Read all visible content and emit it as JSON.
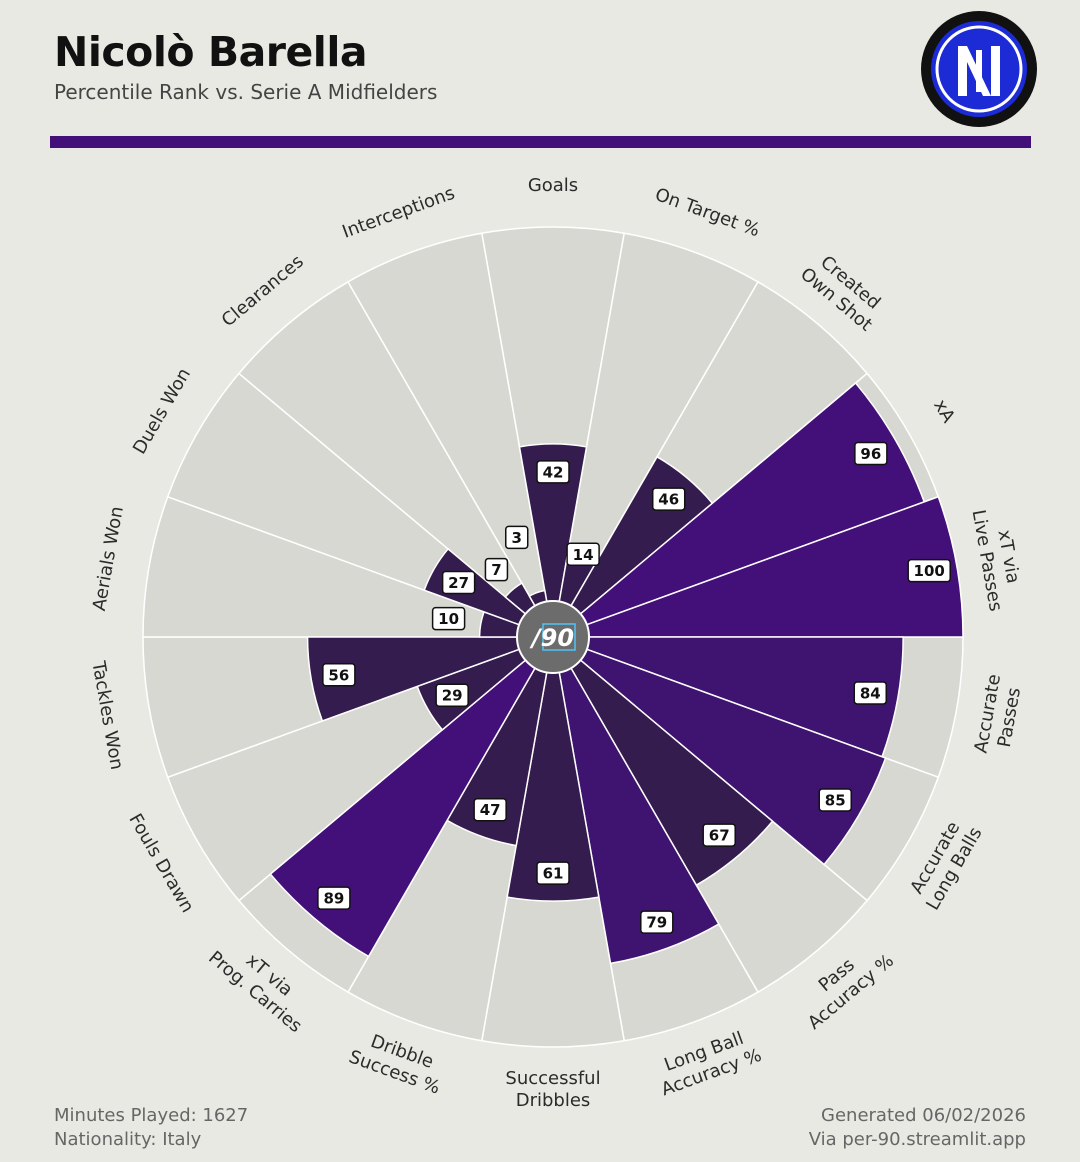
{
  "header": {
    "player_name": "Nicolò Barella",
    "subtitle": "Percentile Rank vs. Serie A Midfielders"
  },
  "logo": {
    "icon": "inter-milan-crest-icon",
    "colors": {
      "ring": "#111111",
      "blue": "#1d2bd6",
      "white": "#ffffff"
    }
  },
  "center_badge": {
    "text": "/90"
  },
  "footer": {
    "minutes": "Minutes Played: 1627",
    "nationality": "Nationality: Italy",
    "generated": "Generated 06/02/2026",
    "source": "Via per-90.streamlit.app"
  },
  "colors": {
    "background": "#e9e9e4",
    "wedge_background": "#d8d8d2",
    "attacking": "#43107a",
    "possession": "#3e1470",
    "defending": "#351c4e",
    "divider": "#43107a"
  },
  "chart_data": {
    "type": "polar-bar",
    "title": "Nicolò Barella",
    "subtitle": "Percentile Rank vs. Serie A Midfielders",
    "scale": [
      0,
      100
    ],
    "metrics": [
      {
        "label": "Goals",
        "value": 42,
        "group": "defending"
      },
      {
        "label": "On Target %",
        "value": 14,
        "group": "defending"
      },
      {
        "label": "Created\nOwn Shot",
        "value": 46,
        "group": "defending"
      },
      {
        "label": "xA",
        "value": 96,
        "group": "attacking"
      },
      {
        "label": "xT via\nLive Passes",
        "value": 100,
        "group": "attacking"
      },
      {
        "label": "Accurate\nPasses",
        "value": 84,
        "group": "possession"
      },
      {
        "label": "Accurate\nLong Balls",
        "value": 85,
        "group": "possession"
      },
      {
        "label": "Pass\nAccuracy %",
        "value": 67,
        "group": "defending"
      },
      {
        "label": "Long Ball\nAccuracy %",
        "value": 79,
        "group": "possession"
      },
      {
        "label": "Successful\nDribbles",
        "value": 61,
        "group": "defending"
      },
      {
        "label": "Dribble\nSuccess %",
        "value": 47,
        "group": "defending"
      },
      {
        "label": "xT via\nProg. Carries",
        "value": 89,
        "group": "attacking"
      },
      {
        "label": "Fouls Drawn",
        "value": 29,
        "group": "defending"
      },
      {
        "label": "Tackles Won",
        "value": 56,
        "group": "defending"
      },
      {
        "label": "Aerials Won",
        "value": 10,
        "group": "defending"
      },
      {
        "label": "Duels Won",
        "value": 27,
        "group": "defending"
      },
      {
        "label": "Clearances",
        "value": 7,
        "group": "defending"
      },
      {
        "label": "Interceptions",
        "value": 3,
        "group": "defending"
      }
    ]
  }
}
